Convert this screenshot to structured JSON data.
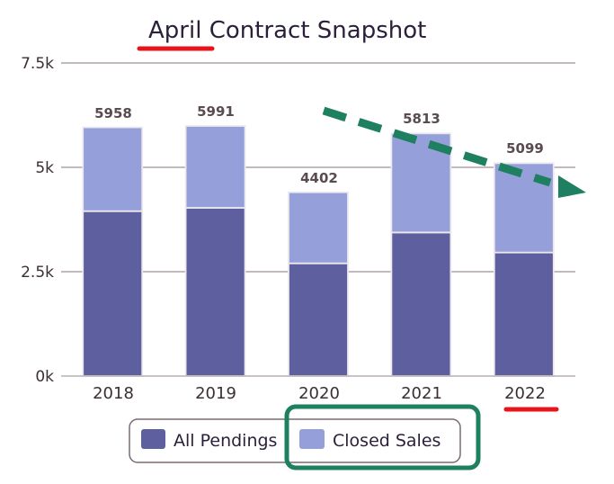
{
  "chart_data": {
    "type": "bar",
    "stacked": true,
    "title": "April Contract Snapshot",
    "categories": [
      "2018",
      "2019",
      "2020",
      "2021",
      "2022"
    ],
    "yticks": [
      "0k",
      "2.5k",
      "5k",
      "7.5k"
    ],
    "ylim": [
      0,
      7500
    ],
    "grid": true,
    "legend_placement": "bottom-center",
    "series": [
      {
        "name": "All Pendings",
        "values": [
          3950,
          4030,
          2700,
          3440,
          2960
        ],
        "color": "#5e5f9e"
      },
      {
        "name": "Closed Sales",
        "values": [
          2008,
          1961,
          1702,
          2373,
          2139
        ],
        "color": "#959fd9"
      }
    ],
    "totals": [
      "5958",
      "5991",
      "4402",
      "5813",
      "5099"
    ],
    "annotations": {
      "underline_color": "#e8141c",
      "highlight_box_color": "#1e8060",
      "trend_arrow_color": "#1e8060"
    }
  }
}
